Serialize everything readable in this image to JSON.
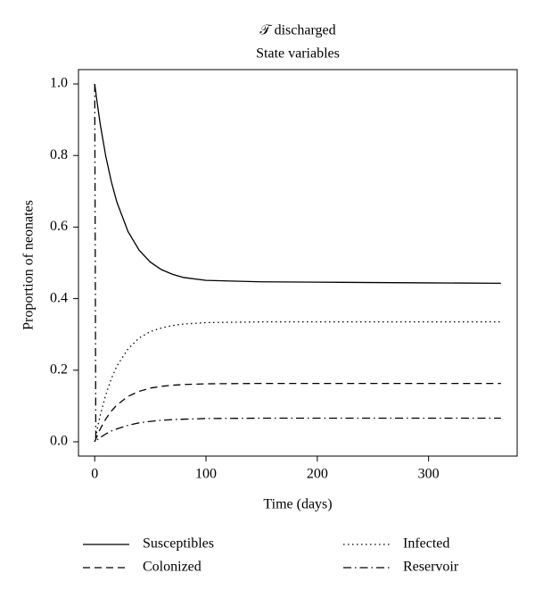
{
  "chart_data": {
    "type": "line",
    "title": "𝒯 discharged",
    "subtitle": "State variables",
    "x_label": "Time (days)",
    "y_label": "Proportion of neonates",
    "x": [
      0,
      1,
      2,
      5,
      10,
      15,
      20,
      30,
      40,
      50,
      60,
      70,
      80,
      100,
      150,
      200,
      250,
      300,
      365
    ],
    "series": [
      {
        "name": "Susceptibles",
        "color": "#000000",
        "dash": "solid",
        "values": [
          1.0,
          0.976,
          0.952,
          0.887,
          0.797,
          0.726,
          0.669,
          0.587,
          0.535,
          0.502,
          0.481,
          0.468,
          0.459,
          0.451,
          0.447,
          0.446,
          0.445,
          0.444,
          0.443
        ]
      },
      {
        "name": "Infected",
        "color": "#000000",
        "dash": "dotted",
        "values": [
          0,
          0.016,
          0.032,
          0.074,
          0.132,
          0.177,
          0.212,
          0.26,
          0.29,
          0.308,
          0.318,
          0.325,
          0.329,
          0.333,
          0.335,
          0.335,
          0.335,
          0.335,
          0.335
        ]
      },
      {
        "name": "Colonized",
        "color": "#000000",
        "dash": "dashed",
        "values": [
          0,
          0.008,
          0.015,
          0.036,
          0.064,
          0.086,
          0.103,
          0.127,
          0.141,
          0.15,
          0.155,
          0.158,
          0.16,
          0.162,
          0.163,
          0.163,
          0.163,
          0.163,
          0.163
        ]
      },
      {
        "name": "Reservoir",
        "color": "#000000",
        "dash": "dotdash",
        "values": [
          1.0,
          0.003,
          0.005,
          0.012,
          0.022,
          0.03,
          0.036,
          0.046,
          0.053,
          0.057,
          0.06,
          0.062,
          0.063,
          0.065,
          0.066,
          0.066,
          0.066,
          0.066,
          0.066
        ]
      }
    ],
    "xlim": [
      -14.6,
      379.6
    ],
    "xticks": [
      0,
      100,
      200,
      300
    ],
    "ylim": [
      -0.04,
      1.04
    ],
    "yticks": [
      {
        "value": 0,
        "label": "0.0"
      },
      {
        "value": 0.2,
        "label": "0.2"
      },
      {
        "value": 0.4,
        "label": "0.4"
      },
      {
        "value": 0.6,
        "label": "0.6"
      },
      {
        "value": 0.8,
        "label": "0.8"
      },
      {
        "value": 1.0,
        "label": "1.0"
      }
    ],
    "grid": false,
    "legend": "bottom"
  }
}
